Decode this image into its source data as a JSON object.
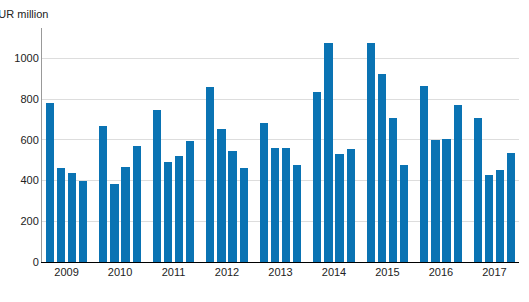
{
  "chart_data": {
    "type": "bar",
    "y_label": "EUR million",
    "categories": [
      null,
      "2009",
      null,
      null,
      null,
      "2010",
      null,
      null,
      null,
      "2011",
      null,
      null,
      null,
      "2012",
      null,
      null,
      null,
      "2013",
      null,
      null,
      null,
      "2014",
      null,
      null,
      null,
      "2015",
      null,
      null,
      null,
      "2016",
      null,
      null,
      null,
      "2017",
      null,
      null
    ],
    "values": [
      780,
      460,
      435,
      400,
      670,
      385,
      465,
      570,
      745,
      490,
      520,
      595,
      860,
      655,
      545,
      460,
      685,
      560,
      560,
      475,
      835,
      1075,
      530,
      555,
      1075,
      925,
      710,
      475,
      865,
      600,
      605,
      770,
      710,
      430,
      450,
      535
    ],
    "color": "#0a73b3",
    "ylim": [
      0,
      1150
    ],
    "yticks": [
      0,
      200,
      400,
      600,
      800,
      1000
    ],
    "grid": true
  }
}
